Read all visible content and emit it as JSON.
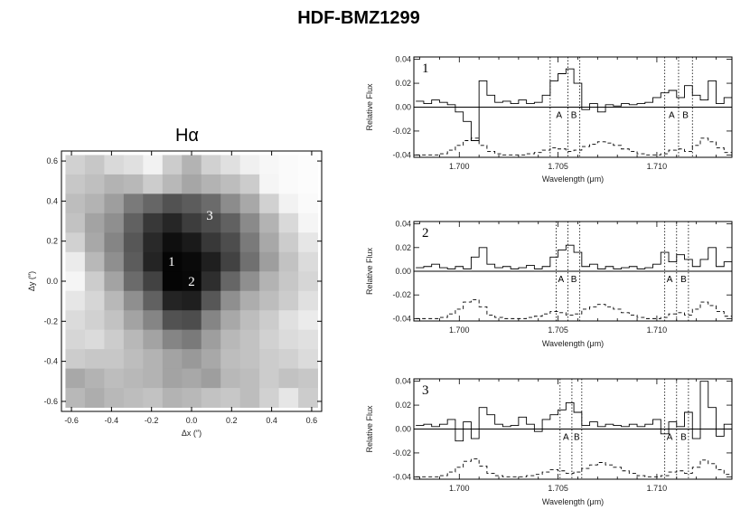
{
  "chart_data": [
    {
      "type": "heatmap",
      "title": "HDF-BMZ1299",
      "subtitle": "Hα",
      "xlabel": "Δx (″)",
      "ylabel": "Δy (″)",
      "xlim": [
        -0.65,
        0.65
      ],
      "ylim": [
        -0.65,
        0.65
      ],
      "xticks": [
        -0.6,
        -0.4,
        -0.2,
        0.0,
        0.2,
        0.4,
        0.6
      ],
      "yticks": [
        -0.6,
        -0.4,
        -0.2,
        0.0,
        0.2,
        0.4,
        0.6
      ],
      "xtick_labels": [
        "-0.6",
        "-0.4",
        "-0.2",
        "0.0",
        "0.2",
        "0.4",
        "0.6"
      ],
      "ytick_labels": [
        "-0.6",
        "-0.4",
        "-0.2",
        "0.0",
        "0.2",
        "0.4",
        "0.6"
      ],
      "grid_x_range": [
        -0.63,
        0.63
      ],
      "grid_y_range": [
        -0.63,
        0.63
      ],
      "grid_shape": [
        13,
        13
      ],
      "values": [
        [
          0.82,
          0.78,
          0.85,
          0.88,
          0.95,
          0.8,
          0.7,
          0.82,
          0.88,
          0.94,
          0.97,
          0.98,
          0.99
        ],
        [
          0.78,
          0.75,
          0.7,
          0.72,
          0.8,
          0.72,
          0.65,
          0.7,
          0.74,
          0.8,
          0.96,
          0.98,
          0.99
        ],
        [
          0.74,
          0.7,
          0.62,
          0.48,
          0.4,
          0.32,
          0.36,
          0.42,
          0.55,
          0.66,
          0.82,
          0.95,
          0.98
        ],
        [
          0.76,
          0.64,
          0.56,
          0.38,
          0.22,
          0.15,
          0.24,
          0.3,
          0.38,
          0.54,
          0.7,
          0.85,
          0.96
        ],
        [
          0.82,
          0.66,
          0.52,
          0.34,
          0.16,
          0.06,
          0.1,
          0.22,
          0.3,
          0.48,
          0.66,
          0.8,
          0.9
        ],
        [
          0.92,
          0.72,
          0.56,
          0.36,
          0.14,
          0.02,
          0.04,
          0.12,
          0.26,
          0.44,
          0.62,
          0.76,
          0.86
        ],
        [
          0.96,
          0.8,
          0.64,
          0.42,
          0.26,
          0.02,
          0.03,
          0.18,
          0.4,
          0.56,
          0.7,
          0.78,
          0.84
        ],
        [
          0.9,
          0.84,
          0.72,
          0.56,
          0.38,
          0.14,
          0.12,
          0.34,
          0.56,
          0.68,
          0.74,
          0.8,
          0.88
        ],
        [
          0.86,
          0.82,
          0.76,
          0.64,
          0.52,
          0.32,
          0.3,
          0.52,
          0.66,
          0.74,
          0.8,
          0.88,
          0.92
        ],
        [
          0.84,
          0.86,
          0.8,
          0.72,
          0.64,
          0.52,
          0.48,
          0.62,
          0.72,
          0.76,
          0.82,
          0.86,
          0.88
        ],
        [
          0.8,
          0.78,
          0.78,
          0.74,
          0.7,
          0.64,
          0.6,
          0.66,
          0.74,
          0.76,
          0.8,
          0.82,
          0.86
        ],
        [
          0.66,
          0.7,
          0.74,
          0.72,
          0.7,
          0.64,
          0.66,
          0.62,
          0.72,
          0.74,
          0.8,
          0.76,
          0.78
        ],
        [
          0.72,
          0.68,
          0.72,
          0.74,
          0.76,
          0.7,
          0.72,
          0.76,
          0.78,
          0.74,
          0.82,
          0.9,
          0.8
        ]
      ],
      "annotations": [
        {
          "text": "1",
          "x": -0.1,
          "y": 0.1
        },
        {
          "text": "2",
          "x": 0.0,
          "y": 0.0
        },
        {
          "text": "3",
          "x": 0.09,
          "y": 0.33
        }
      ]
    },
    {
      "type": "line",
      "label": "1",
      "xlabel": "Wavelength (μm)",
      "ylabel": "Relative Flux",
      "xlim": [
        1.6977,
        1.7138
      ],
      "ylim": [
        -0.042,
        0.042
      ],
      "xticks": [
        1.7,
        1.705,
        1.71
      ],
      "yticks": [
        -0.04,
        -0.02,
        0.0,
        0.02,
        0.04
      ],
      "xtick_labels": [
        "1.700",
        "1.705",
        "1.710"
      ],
      "ytick_labels": [
        "-0.04",
        "-0.02",
        "0.00",
        "0.02",
        "0.04"
      ],
      "vlines": [
        1.7046,
        1.7055,
        1.7061,
        1.7104,
        1.7111,
        1.7118
      ],
      "line_labels": [
        {
          "text": "A",
          "x": 1.70505
        },
        {
          "text": "B",
          "x": 1.7058
        },
        {
          "text": "A",
          "x": 1.71075
        },
        {
          "text": "B",
          "x": 1.71145
        }
      ],
      "series": [
        {
          "style": "solid",
          "step": true,
          "x": [
            1.6978,
            1.6982,
            1.6986,
            1.699,
            1.6994,
            1.6998,
            1.7002,
            1.7006,
            1.701,
            1.7014,
            1.7018,
            1.7022,
            1.7026,
            1.703,
            1.7034,
            1.7038,
            1.7042,
            1.7046,
            1.705,
            1.7054,
            1.7058,
            1.7062,
            1.7066,
            1.707,
            1.7074,
            1.7078,
            1.7082,
            1.7086,
            1.709,
            1.7094,
            1.7098,
            1.7102,
            1.7106,
            1.711,
            1.7114,
            1.7118,
            1.7122,
            1.7126,
            1.713,
            1.7134
          ],
          "y": [
            0.005,
            0.003,
            0.006,
            0.004,
            0.002,
            -0.004,
            -0.012,
            -0.028,
            0.022,
            0.01,
            0.004,
            0.005,
            0.003,
            0.006,
            0.003,
            0.004,
            0.01,
            0.022,
            0.028,
            0.032,
            0.02,
            -0.002,
            0.003,
            -0.004,
            0.002,
            0.001,
            0.003,
            0.002,
            0.003,
            0.004,
            0.008,
            0.012,
            0.014,
            0.008,
            0.018,
            0.01,
            0.006,
            0.022,
            0.003,
            0.008
          ]
        },
        {
          "style": "dashed",
          "step": true,
          "x": [
            1.6978,
            1.6982,
            1.6986,
            1.699,
            1.6994,
            1.6998,
            1.7002,
            1.7006,
            1.701,
            1.7014,
            1.7018,
            1.7022,
            1.7026,
            1.703,
            1.7034,
            1.7038,
            1.7042,
            1.7046,
            1.705,
            1.7054,
            1.7058,
            1.7062,
            1.7066,
            1.707,
            1.7074,
            1.7078,
            1.7082,
            1.7086,
            1.709,
            1.7094,
            1.7098,
            1.7102,
            1.7106,
            1.711,
            1.7114,
            1.7118,
            1.7122,
            1.7126,
            1.713,
            1.7134
          ],
          "y": [
            -0.04,
            -0.04,
            -0.04,
            -0.039,
            -0.036,
            -0.032,
            -0.028,
            -0.026,
            -0.032,
            -0.037,
            -0.039,
            -0.04,
            -0.04,
            -0.04,
            -0.039,
            -0.038,
            -0.036,
            -0.034,
            -0.035,
            -0.037,
            -0.036,
            -0.033,
            -0.031,
            -0.029,
            -0.03,
            -0.032,
            -0.035,
            -0.037,
            -0.039,
            -0.04,
            -0.04,
            -0.039,
            -0.036,
            -0.035,
            -0.037,
            -0.032,
            -0.026,
            -0.029,
            -0.034,
            -0.038
          ]
        }
      ]
    },
    {
      "type": "line",
      "label": "2",
      "xlabel": "Wavelength (μm)",
      "ylabel": "Relative Flux",
      "xlim": [
        1.6977,
        1.7138
      ],
      "ylim": [
        -0.042,
        0.042
      ],
      "xticks": [
        1.7,
        1.705,
        1.71
      ],
      "yticks": [
        -0.04,
        -0.02,
        0.0,
        0.02,
        0.04
      ],
      "xtick_labels": [
        "1.700",
        "1.705",
        "1.710"
      ],
      "ytick_labels": [
        "-0.04",
        "-0.02",
        "0.00",
        "0.02",
        "0.04"
      ],
      "vlines": [
        1.7049,
        1.7055,
        1.7061,
        1.7104,
        1.711,
        1.7116
      ],
      "line_labels": [
        {
          "text": "A",
          "x": 1.70515
        },
        {
          "text": "B",
          "x": 1.7058
        },
        {
          "text": "A",
          "x": 1.71065
        },
        {
          "text": "B",
          "x": 1.71135
        }
      ],
      "series": [
        {
          "style": "solid",
          "step": true,
          "x": [
            1.6978,
            1.6982,
            1.6986,
            1.699,
            1.6994,
            1.6998,
            1.7002,
            1.7006,
            1.701,
            1.7014,
            1.7018,
            1.7022,
            1.7026,
            1.703,
            1.7034,
            1.7038,
            1.7042,
            1.7046,
            1.705,
            1.7054,
            1.7058,
            1.7062,
            1.7066,
            1.707,
            1.7074,
            1.7078,
            1.7082,
            1.7086,
            1.709,
            1.7094,
            1.7098,
            1.7102,
            1.7106,
            1.711,
            1.7114,
            1.7118,
            1.7122,
            1.7126,
            1.713,
            1.7134
          ],
          "y": [
            0.003,
            0.004,
            0.006,
            0.003,
            0.002,
            0.004,
            0.002,
            0.012,
            0.02,
            0.006,
            0.003,
            0.004,
            0.002,
            0.003,
            0.005,
            0.002,
            0.004,
            0.012,
            0.018,
            0.022,
            0.016,
            0.004,
            0.006,
            0.002,
            0.004,
            0.002,
            0.003,
            0.004,
            0.002,
            0.003,
            0.006,
            0.016,
            0.008,
            0.014,
            0.01,
            0.004,
            0.01,
            0.02,
            0.004,
            0.008
          ]
        },
        {
          "style": "dashed",
          "step": true,
          "x": [
            1.6978,
            1.6982,
            1.6986,
            1.699,
            1.6994,
            1.6998,
            1.7002,
            1.7006,
            1.701,
            1.7014,
            1.7018,
            1.7022,
            1.7026,
            1.703,
            1.7034,
            1.7038,
            1.7042,
            1.7046,
            1.705,
            1.7054,
            1.7058,
            1.7062,
            1.7066,
            1.707,
            1.7074,
            1.7078,
            1.7082,
            1.7086,
            1.709,
            1.7094,
            1.7098,
            1.7102,
            1.7106,
            1.711,
            1.7114,
            1.7118,
            1.7122,
            1.7126,
            1.713,
            1.7134
          ],
          "y": [
            -0.04,
            -0.04,
            -0.04,
            -0.039,
            -0.036,
            -0.032,
            -0.026,
            -0.024,
            -0.03,
            -0.037,
            -0.039,
            -0.04,
            -0.04,
            -0.04,
            -0.039,
            -0.038,
            -0.036,
            -0.034,
            -0.035,
            -0.037,
            -0.036,
            -0.032,
            -0.03,
            -0.028,
            -0.03,
            -0.032,
            -0.035,
            -0.037,
            -0.039,
            -0.04,
            -0.04,
            -0.039,
            -0.036,
            -0.035,
            -0.037,
            -0.032,
            -0.026,
            -0.029,
            -0.034,
            -0.038
          ]
        }
      ]
    },
    {
      "type": "line",
      "label": "3",
      "xlabel": "Wavelength (μm)",
      "ylabel": "Relative Flux",
      "xlim": [
        1.6977,
        1.7138
      ],
      "ylim": [
        -0.042,
        0.042
      ],
      "xticks": [
        1.7,
        1.705,
        1.71
      ],
      "yticks": [
        -0.04,
        -0.02,
        0.0,
        0.02,
        0.04
      ],
      "xtick_labels": [
        "1.700",
        "1.705",
        "1.710"
      ],
      "ytick_labels": [
        "-0.04",
        "-0.02",
        "0.00",
        "0.02",
        "0.04"
      ],
      "vlines": [
        1.7051,
        1.7057,
        1.7062,
        1.7104,
        1.711,
        1.7116
      ],
      "line_labels": [
        {
          "text": "A",
          "x": 1.7054
        },
        {
          "text": "B",
          "x": 1.70595
        },
        {
          "text": "A",
          "x": 1.71065
        },
        {
          "text": "B",
          "x": 1.71135
        }
      ],
      "series": [
        {
          "style": "solid",
          "step": true,
          "x": [
            1.6978,
            1.6982,
            1.6986,
            1.699,
            1.6994,
            1.6998,
            1.7002,
            1.7006,
            1.701,
            1.7014,
            1.7018,
            1.7022,
            1.7026,
            1.703,
            1.7034,
            1.7038,
            1.7042,
            1.7046,
            1.705,
            1.7054,
            1.7058,
            1.7062,
            1.7066,
            1.707,
            1.7074,
            1.7078,
            1.7082,
            1.7086,
            1.709,
            1.7094,
            1.7098,
            1.7102,
            1.7106,
            1.711,
            1.7114,
            1.7118,
            1.7122,
            1.7126,
            1.713,
            1.7134
          ],
          "y": [
            0.003,
            0.004,
            0.002,
            0.004,
            0.008,
            -0.01,
            0.006,
            -0.008,
            0.018,
            0.012,
            0.004,
            0.002,
            0.003,
            0.01,
            0.004,
            -0.002,
            0.008,
            0.012,
            0.016,
            0.022,
            0.014,
            0.003,
            0.006,
            0.002,
            0.004,
            0.003,
            0.002,
            0.004,
            0.002,
            0.004,
            0.008,
            -0.004,
            0.006,
            0.002,
            0.014,
            -0.008,
            0.04,
            0.018,
            -0.006,
            0.004
          ]
        },
        {
          "style": "dashed",
          "step": true,
          "x": [
            1.6978,
            1.6982,
            1.6986,
            1.699,
            1.6994,
            1.6998,
            1.7002,
            1.7006,
            1.701,
            1.7014,
            1.7018,
            1.7022,
            1.7026,
            1.703,
            1.7034,
            1.7038,
            1.7042,
            1.7046,
            1.705,
            1.7054,
            1.7058,
            1.7062,
            1.7066,
            1.707,
            1.7074,
            1.7078,
            1.7082,
            1.7086,
            1.709,
            1.7094,
            1.7098,
            1.7102,
            1.7106,
            1.711,
            1.7114,
            1.7118,
            1.7122,
            1.7126,
            1.713,
            1.7134
          ],
          "y": [
            -0.04,
            -0.04,
            -0.04,
            -0.039,
            -0.036,
            -0.032,
            -0.027,
            -0.025,
            -0.031,
            -0.037,
            -0.039,
            -0.04,
            -0.04,
            -0.04,
            -0.039,
            -0.038,
            -0.036,
            -0.034,
            -0.035,
            -0.037,
            -0.036,
            -0.033,
            -0.03,
            -0.028,
            -0.03,
            -0.032,
            -0.035,
            -0.037,
            -0.039,
            -0.04,
            -0.04,
            -0.039,
            -0.036,
            -0.035,
            -0.037,
            -0.032,
            -0.026,
            -0.029,
            -0.034,
            -0.038
          ]
        }
      ]
    }
  ]
}
